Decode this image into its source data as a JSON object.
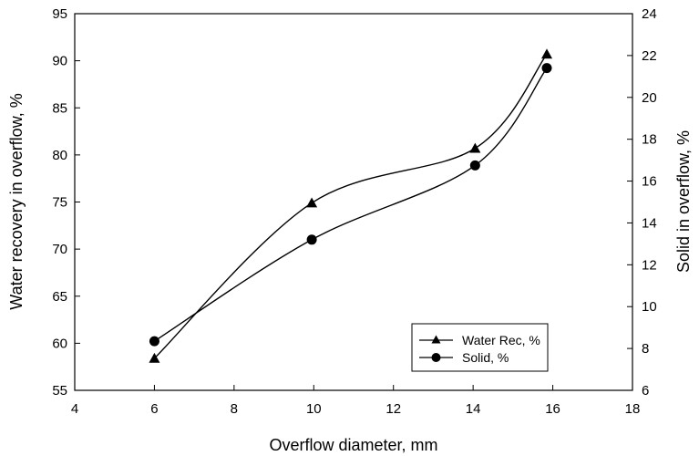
{
  "chart_data": {
    "type": "line",
    "xlabel": "Overflow diameter, mm",
    "ylabel_left": "Water recovery in overflow, %",
    "ylabel_right": "Solid in overflow, %",
    "xlim": [
      4,
      18
    ],
    "ylim_left": [
      55,
      95
    ],
    "ylim_right": [
      6,
      24
    ],
    "x_ticks": [
      "4",
      "6",
      "8",
      "10",
      "12",
      "14",
      "16",
      "18"
    ],
    "y_left_ticks": [
      "55",
      "60",
      "65",
      "70",
      "75",
      "80",
      "85",
      "90",
      "95"
    ],
    "y_right_ticks": [
      "6",
      "8",
      "10",
      "12",
      "14",
      "16",
      "18",
      "20",
      "22",
      "24"
    ],
    "grid": false,
    "legend_position": "lower-right",
    "series": [
      {
        "name": "Water Rec, %",
        "axis": "left",
        "marker": "triangle",
        "x": [
          6,
          9.95,
          14.05,
          15.85
        ],
        "y": [
          58.4,
          74.9,
          80.7,
          90.7
        ]
      },
      {
        "name": "Solid, %",
        "axis": "right",
        "marker": "circle",
        "x": [
          6,
          9.95,
          14.05,
          15.85
        ],
        "y": [
          8.35,
          13.2,
          16.75,
          21.4
        ]
      }
    ],
    "colors": {
      "line": "#000000",
      "marker": "#000000"
    }
  }
}
